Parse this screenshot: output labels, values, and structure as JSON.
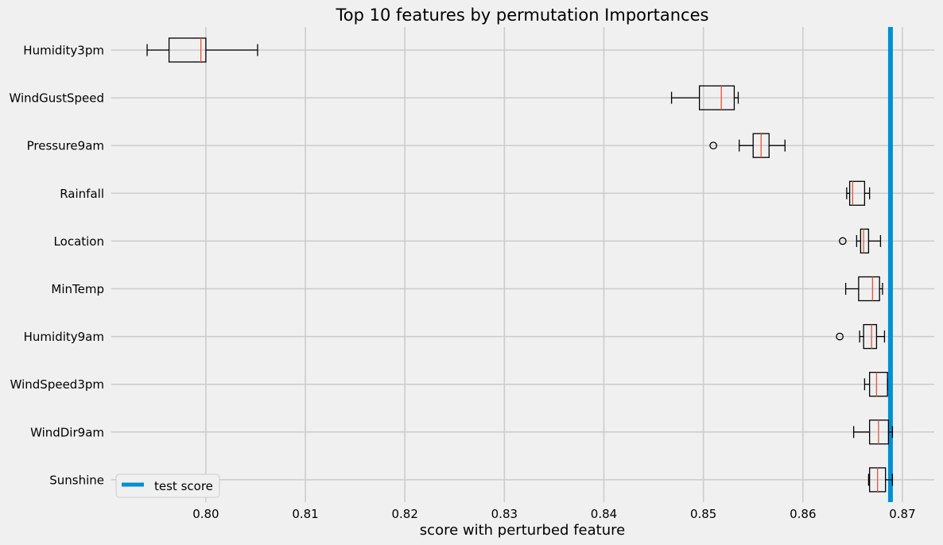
{
  "chart_data": {
    "type": "boxplot",
    "title": "Top 10 features by permutation Importances",
    "xlabel": "score with perturbed feature",
    "ylabel": "",
    "xlim": [
      0.7905,
      0.8732
    ],
    "xticks": [
      0.8,
      0.81,
      0.82,
      0.83,
      0.84,
      0.85,
      0.86,
      0.87
    ],
    "xtick_labels": [
      "0.80",
      "0.81",
      "0.82",
      "0.83",
      "0.84",
      "0.85",
      "0.86",
      "0.87"
    ],
    "grid": true,
    "legend_position": "lower-left",
    "categories": [
      "Humidity3pm",
      "WindGustSpeed",
      "Pressure9am",
      "Rainfall",
      "Location",
      "MinTemp",
      "Humidity9am",
      "WindSpeed3pm",
      "WindDir9am",
      "Sunshine"
    ],
    "boxes": [
      {
        "label": "Humidity3pm",
        "whisker_low": 0.7941,
        "q1": 0.7963,
        "median": 0.7995,
        "q3": 0.8,
        "whisker_high": 0.8052,
        "outliers": []
      },
      {
        "label": "WindGustSpeed",
        "whisker_low": 0.8468,
        "q1": 0.8496,
        "median": 0.8518,
        "q3": 0.8531,
        "whisker_high": 0.8535,
        "outliers": []
      },
      {
        "label": "Pressure9am",
        "whisker_low": 0.8536,
        "q1": 0.855,
        "median": 0.8558,
        "q3": 0.8566,
        "whisker_high": 0.8582,
        "outliers": [
          0.851
        ]
      },
      {
        "label": "Rainfall",
        "whisker_low": 0.8644,
        "q1": 0.8647,
        "median": 0.865,
        "q3": 0.8662,
        "whisker_high": 0.8667,
        "outliers": []
      },
      {
        "label": "Location",
        "whisker_low": 0.8654,
        "q1": 0.8658,
        "median": 0.8661,
        "q3": 0.8666,
        "whisker_high": 0.8678,
        "outliers": [
          0.864
        ]
      },
      {
        "label": "MinTemp",
        "whisker_low": 0.8643,
        "q1": 0.8656,
        "median": 0.867,
        "q3": 0.8677,
        "whisker_high": 0.868,
        "outliers": []
      },
      {
        "label": "Humidity9am",
        "whisker_low": 0.8657,
        "q1": 0.8661,
        "median": 0.8669,
        "q3": 0.8674,
        "whisker_high": 0.8682,
        "outliers": [
          0.8637
        ]
      },
      {
        "label": "WindSpeed3pm",
        "whisker_low": 0.8662,
        "q1": 0.8667,
        "median": 0.8674,
        "q3": 0.8685,
        "whisker_high": 0.8685,
        "outliers": []
      },
      {
        "label": "WindDir9am",
        "whisker_low": 0.8651,
        "q1": 0.8667,
        "median": 0.8676,
        "q3": 0.8686,
        "whisker_high": 0.869,
        "outliers": []
      },
      {
        "label": "Sunshine",
        "whisker_low": 0.8666,
        "q1": 0.8667,
        "median": 0.8675,
        "q3": 0.8683,
        "whisker_high": 0.869,
        "outliers": []
      }
    ],
    "reference_line": {
      "label": "test score",
      "value": 0.8688,
      "color": "#008fd5"
    },
    "colors": {
      "background": "#f0f0f0",
      "grid": "#cbcbcb",
      "box": "#000000",
      "median": "#e5533d",
      "reference": "#008fd5"
    }
  }
}
